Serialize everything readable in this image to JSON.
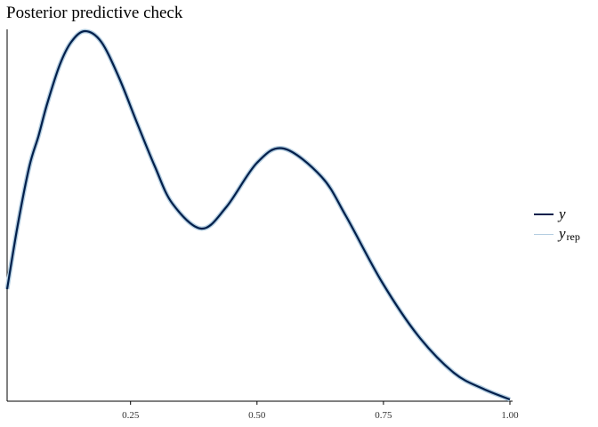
{
  "chart_data": {
    "type": "line",
    "title": "Posterior predictive check",
    "xlabel": "",
    "ylabel": "",
    "xlim": [
      0.006,
      1.0
    ],
    "ylim": [
      0,
      2.09
    ],
    "x_ticks": [
      0.25,
      0.5,
      0.75,
      1.0
    ],
    "x_tick_labels": [
      "0.25",
      "0.50",
      "0.75",
      "1.00"
    ],
    "y_ticks_shown": false,
    "grid": false,
    "legend_position": "right",
    "series": [
      {
        "name": "y",
        "color": "#011f4b",
        "x": [
          0.006,
          0.027,
          0.05,
          0.068,
          0.085,
          0.11,
          0.133,
          0.16,
          0.192,
          0.227,
          0.262,
          0.298,
          0.333,
          0.39,
          0.439,
          0.5,
          0.553,
          0.628,
          0.676,
          0.747,
          0.818,
          0.889,
          0.947,
          1.0
        ],
        "y": [
          0.63,
          0.99,
          1.32,
          1.49,
          1.67,
          1.89,
          2.02,
          2.08,
          2.02,
          1.82,
          1.57,
          1.32,
          1.11,
          0.97,
          1.09,
          1.34,
          1.42,
          1.26,
          1.04,
          0.67,
          0.37,
          0.16,
          0.07,
          0.01
        ]
      },
      {
        "name": "y_rep",
        "color": "#b3cde0",
        "x": [
          0.006,
          0.027,
          0.05,
          0.068,
          0.085,
          0.11,
          0.133,
          0.16,
          0.192,
          0.227,
          0.262,
          0.298,
          0.333,
          0.39,
          0.439,
          0.5,
          0.553,
          0.628,
          0.676,
          0.747,
          0.818,
          0.889,
          0.947,
          1.0
        ],
        "y": [
          0.63,
          0.99,
          1.32,
          1.49,
          1.67,
          1.89,
          2.02,
          2.08,
          2.02,
          1.82,
          1.57,
          1.32,
          1.11,
          0.97,
          1.09,
          1.34,
          1.42,
          1.26,
          1.04,
          0.67,
          0.37,
          0.16,
          0.07,
          0.01
        ]
      }
    ]
  },
  "legend": {
    "y_label": "y",
    "yrep_label": "y",
    "yrep_subscript": "rep"
  }
}
